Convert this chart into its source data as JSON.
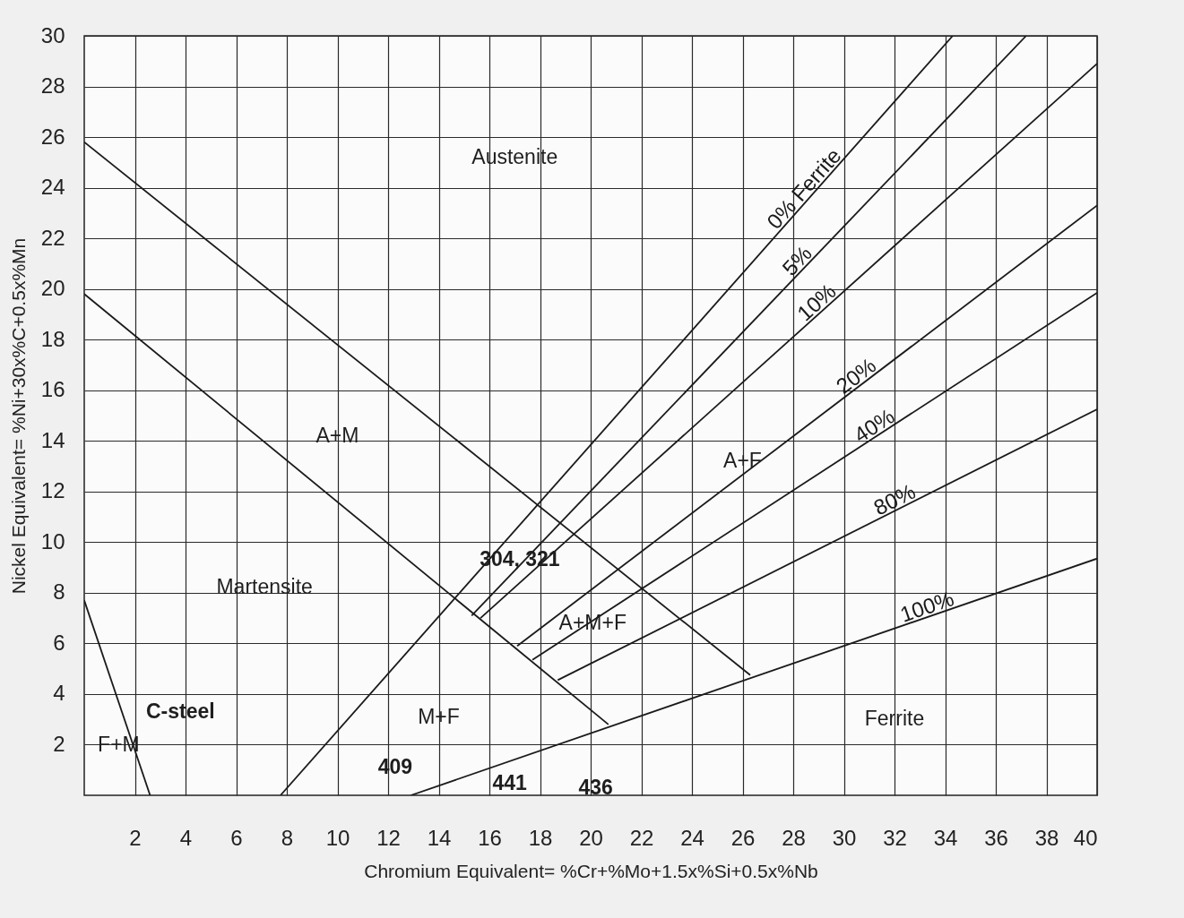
{
  "chart_data": {
    "type": "line",
    "xlabel": "Chromium Equivalent= %Cr+%Mo+1.5x%Si+0.5x%Nb",
    "ylabel": "Nickel Equivalent= %Ni+30x%C+0.5x%Mn",
    "xlim": [
      0,
      40
    ],
    "ylim": [
      0,
      30
    ],
    "xticks": [
      2,
      4,
      6,
      8,
      10,
      12,
      14,
      16,
      18,
      20,
      22,
      24,
      26,
      28,
      30,
      32,
      34,
      36,
      38,
      40
    ],
    "yticks": [
      2,
      4,
      6,
      8,
      10,
      12,
      14,
      16,
      18,
      20,
      22,
      24,
      26,
      28,
      30
    ],
    "grid": true,
    "series": [
      {
        "color": "#1a1a1a",
        "x": [
          0,
          26.3
        ],
        "values": [
          25.8,
          4.75
        ]
      },
      {
        "color": "#1a1a1a",
        "x": [
          0,
          20.7
        ],
        "values": [
          19.8,
          2.8
        ]
      },
      {
        "color": "#1a1a1a",
        "x": [
          0,
          2.6
        ],
        "values": [
          7.7,
          0
        ]
      },
      {
        "name": "0% Ferrite",
        "color": "#1a1a1a",
        "x": [
          7.75,
          34.3
        ],
        "values": [
          0,
          30
        ]
      },
      {
        "name": "5%",
        "color": "#1a1a1a",
        "x": [
          15.3,
          37.2
        ],
        "values": [
          7.1,
          30
        ]
      },
      {
        "name": "10%",
        "color": "#1a1a1a",
        "x": [
          15.65,
          40
        ],
        "values": [
          7,
          28.9
        ]
      },
      {
        "name": "20%",
        "color": "#1a1a1a",
        "x": [
          17.1,
          40
        ],
        "values": [
          5.9,
          23.3
        ]
      },
      {
        "name": "40%",
        "color": "#1a1a1a",
        "x": [
          17.7,
          40
        ],
        "values": [
          5.35,
          19.85
        ]
      },
      {
        "name": "80%",
        "color": "#1a1a1a",
        "x": [
          18.7,
          40
        ],
        "values": [
          4.55,
          15.25
        ]
      },
      {
        "name": "100%",
        "color": "#1a1a1a",
        "x": [
          12.9,
          40
        ],
        "values": [
          0,
          9.35
        ]
      }
    ],
    "annotations": [
      "Austenite",
      "A+M",
      "Martensite",
      "A+M+F",
      "A+F",
      "M+F",
      "Ferrite",
      "F+M",
      "C-steel",
      "304, 321",
      "409",
      "436",
      "441"
    ]
  }
}
